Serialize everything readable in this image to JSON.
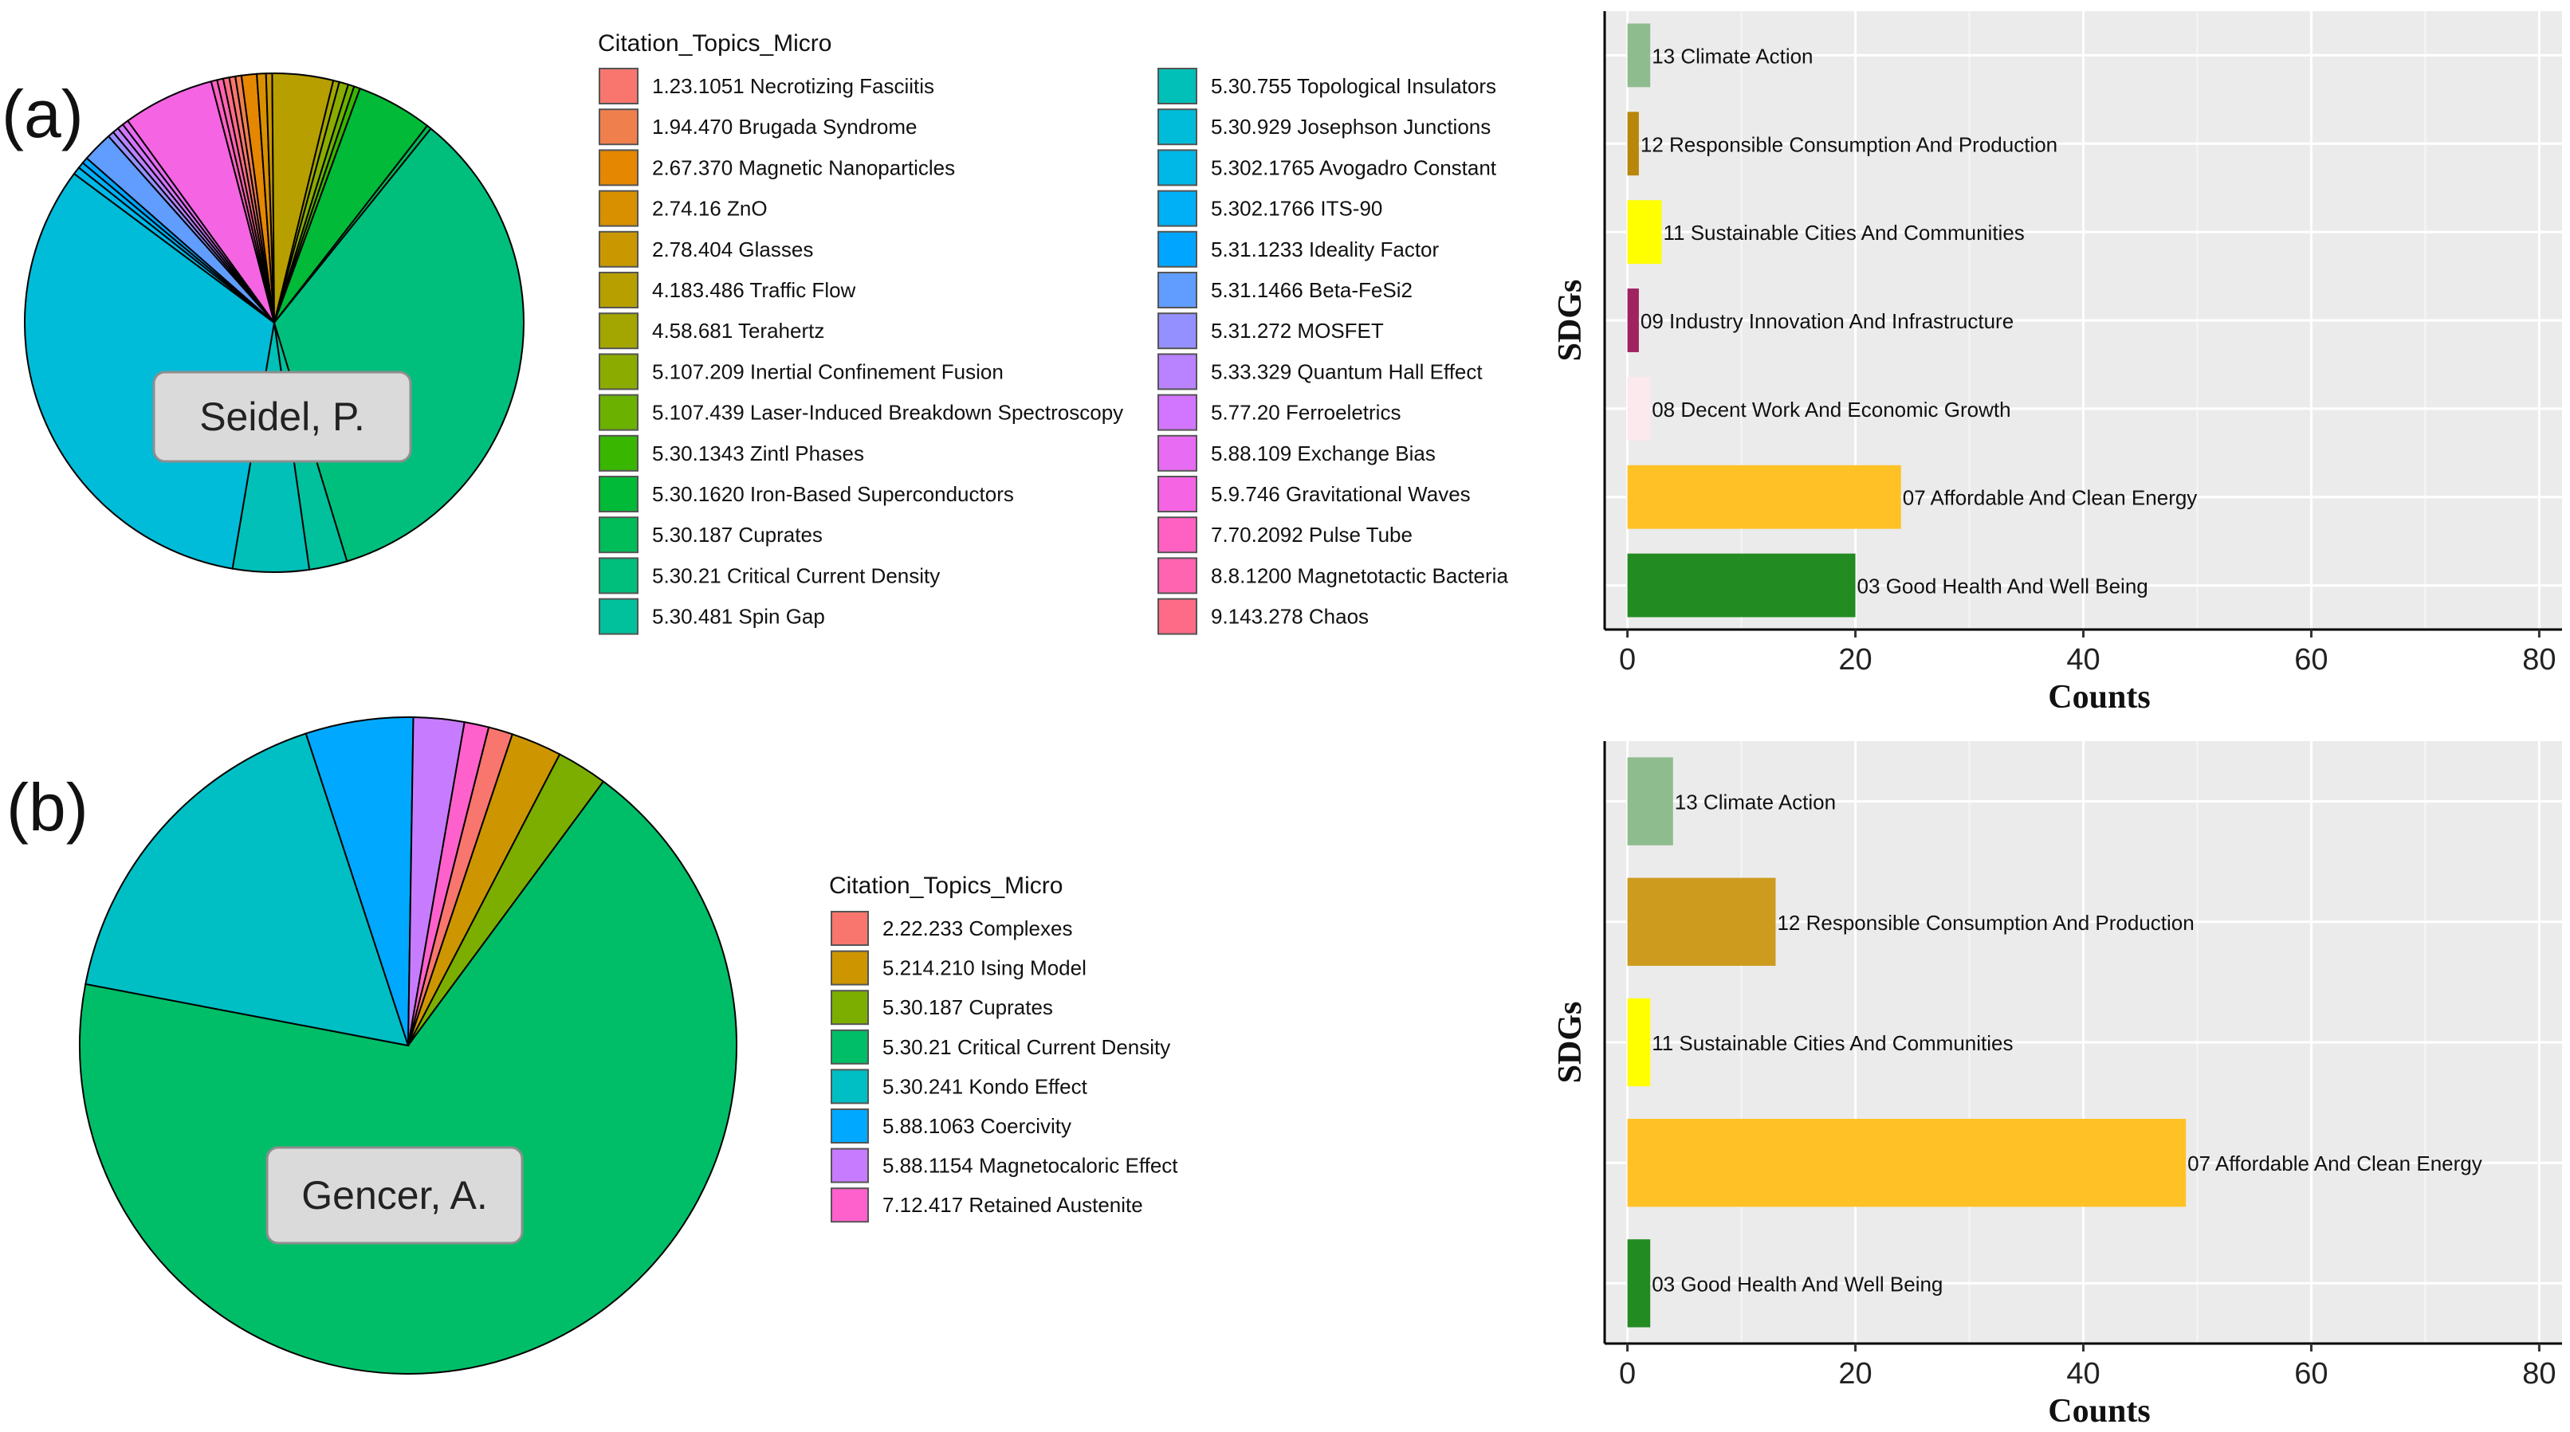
{
  "panels": {
    "a": {
      "label": "(a)",
      "author": "Seidel, P.",
      "legend_title": "Citation_Topics_Micro"
    },
    "b": {
      "label": "(b)",
      "author": "Gencer, A.",
      "legend_title": "Citation_Topics_Micro"
    }
  },
  "chart_data": [
    {
      "type": "pie",
      "panel": "a",
      "title": "Seidel, P.",
      "legend_title": "Citation_Topics_Micro",
      "slices": [
        {
          "label": "1.23.1051 Necrotizing Fasciitis",
          "value": 0.4,
          "color": "#F8766D"
        },
        {
          "label": "1.94.470 Brugada Syndrome",
          "value": 0.4,
          "color": "#F07F4E"
        },
        {
          "label": "2.67.370 Magnetic Nanoparticles",
          "value": 1,
          "color": "#E58700"
        },
        {
          "label": "2.74.16 ZnO",
          "value": 0.6,
          "color": "#D89000"
        },
        {
          "label": "2.78.404 Glasses",
          "value": 0.4,
          "color": "#C99800"
        },
        {
          "label": "4.183.486 Traffic Flow",
          "value": 4,
          "color": "#B79F00"
        },
        {
          "label": "4.58.681 Terahertz",
          "value": 0.4,
          "color": "#A3A500"
        },
        {
          "label": "5.107.209 Inertial Confinement Fusion",
          "value": 0.6,
          "color": "#8BAB00"
        },
        {
          "label": "5.107.439 Laser-Induced Breakdown Spectroscopy",
          "value": 0.4,
          "color": "#6BB100"
        },
        {
          "label": "5.30.1343 Zintl Phases",
          "value": 0.4,
          "color": "#39B600"
        },
        {
          "label": "5.30.1620 Iron-Based Superconductors",
          "value": 5,
          "color": "#00BA38"
        },
        {
          "label": "5.30.187 Cuprates",
          "value": 0.3,
          "color": "#00BC59"
        },
        {
          "label": "5.30.21 Critical Current Density",
          "value": 35,
          "color": "#00BF7D"
        },
        {
          "label": "5.30.481 Spin Gap",
          "value": 2.5,
          "color": "#00C19C"
        },
        {
          "label": "5.30.755 Topological Insulators",
          "value": 5,
          "color": "#00C0B8"
        },
        {
          "label": "5.30.929 Josephson Junctions",
          "value": 33,
          "color": "#00BCD8"
        },
        {
          "label": "5.302.1765 Avogadro Constant",
          "value": 0.5,
          "color": "#00B8E7"
        },
        {
          "label": "5.302.1766 ITS-90",
          "value": 0.4,
          "color": "#00B0F6"
        },
        {
          "label": "5.31.1233 Ideality Factor",
          "value": 0.4,
          "color": "#00A5FF"
        },
        {
          "label": "5.31.1466 Beta-FeSi2",
          "value": 2,
          "color": "#619CFF"
        },
        {
          "label": "5.31.272 MOSFET",
          "value": 0.4,
          "color": "#9590FF"
        },
        {
          "label": "5.33.329 Quantum Hall Effect",
          "value": 0.4,
          "color": "#B983FF"
        },
        {
          "label": "5.77.20 Ferroeletrics",
          "value": 0.4,
          "color": "#D376FF"
        },
        {
          "label": "5.88.109 Exchange Bias",
          "value": 0.4,
          "color": "#E76BF3"
        },
        {
          "label": "5.9.746 Gravitational Waves",
          "value": 6,
          "color": "#F564E3"
        },
        {
          "label": "7.70.2092 Pulse Tube",
          "value": 0.4,
          "color": "#FF61C3"
        },
        {
          "label": "8.8.1200 Magnetotactic Bacteria",
          "value": 0.4,
          "color": "#FF64B0"
        },
        {
          "label": "9.143.278 Chaos",
          "value": 0.4,
          "color": "#FD6B86"
        }
      ]
    },
    {
      "type": "bar",
      "panel": "a",
      "orientation": "horizontal",
      "xlabel": "Counts",
      "ylabel": "SDGs",
      "xlim": [
        -2,
        82
      ],
      "xticks": [
        0,
        20,
        40,
        60,
        80
      ],
      "grid": true,
      "categories": [
        "13 Climate Action",
        "12 Responsible Consumption And Production",
        "11 Sustainable Cities And Communities",
        "09 Industry Innovation And Infrastructure",
        "08 Decent Work And Economic Growth",
        "07 Affordable And Clean Energy",
        "03 Good Health And Well Being"
      ],
      "values": [
        2,
        1,
        3,
        1,
        2,
        24,
        20
      ],
      "colors": [
        "#8FBC8F",
        "#B8860B",
        "#FFFF00",
        "#A0225F",
        "#FBE9EE",
        "#FFC125",
        "#228B22"
      ]
    },
    {
      "type": "pie",
      "panel": "b",
      "title": "Gencer, A.",
      "legend_title": "Citation_Topics_Micro",
      "slices": [
        {
          "label": "2.22.233 Complexes",
          "value": 1.2,
          "color": "#F8766D"
        },
        {
          "label": "5.214.210 Ising Model",
          "value": 2.5,
          "color": "#CD9600"
        },
        {
          "label": "5.30.187 Cuprates",
          "value": 2.5,
          "color": "#7CAE00"
        },
        {
          "label": "5.30.21 Critical Current Density",
          "value": 68,
          "color": "#00BE67"
        },
        {
          "label": "5.30.241 Kondo Effect",
          "value": 17,
          "color": "#00BFC4"
        },
        {
          "label": "5.88.1063 Coercivity",
          "value": 5.3,
          "color": "#00A9FF"
        },
        {
          "label": "5.88.1154 Magnetocaloric Effect",
          "value": 2.5,
          "color": "#C77CFF"
        },
        {
          "label": "7.12.417 Retained Austenite",
          "value": 1.2,
          "color": "#FF61CC"
        }
      ]
    },
    {
      "type": "bar",
      "panel": "b",
      "orientation": "horizontal",
      "xlabel": "Counts",
      "ylabel": "SDGs",
      "xlim": [
        -2,
        82
      ],
      "xticks": [
        0,
        20,
        40,
        60,
        80
      ],
      "grid": true,
      "categories": [
        "13 Climate Action",
        "12 Responsible Consumption And Production",
        "11 Sustainable Cities And Communities",
        "07 Affordable And Clean Energy",
        "03 Good Health And Well Being"
      ],
      "values": [
        4,
        13,
        2,
        49,
        2
      ],
      "colors": [
        "#8FBC8F",
        "#CD9B1D",
        "#FFFF00",
        "#FFC125",
        "#228B22"
      ]
    }
  ]
}
